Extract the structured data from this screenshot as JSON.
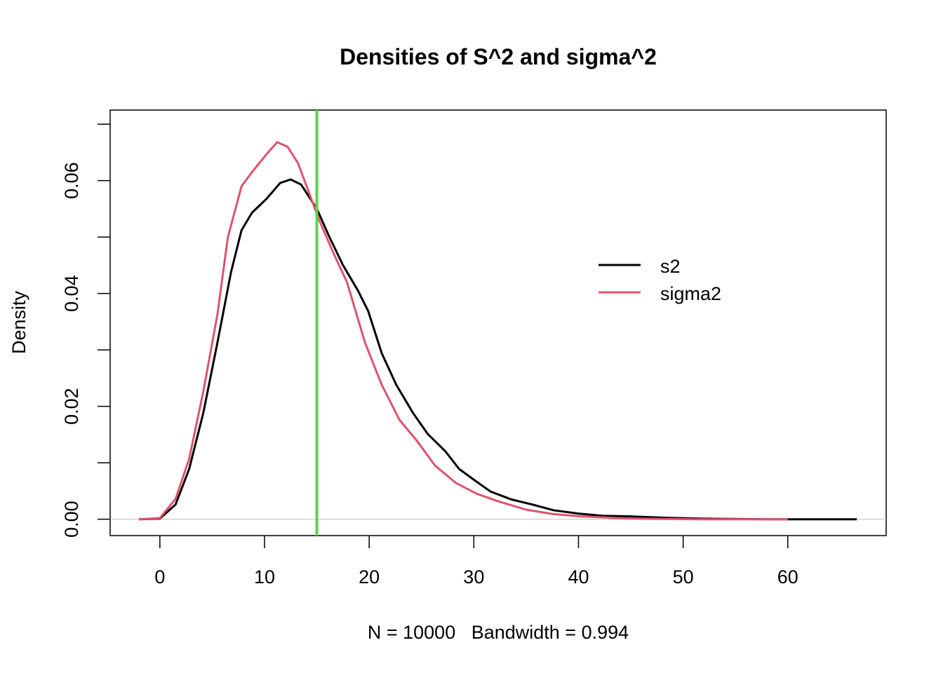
{
  "chart_data": {
    "type": "line",
    "title": "Densities of S^2 and sigma^2",
    "xlabel": "N = 10000   Bandwidth = 0.994",
    "ylabel": "Density",
    "xlim": [
      -4.75,
      69.4
    ],
    "ylim": [
      -0.0029,
      0.0725
    ],
    "x_ticks": [
      0,
      10,
      20,
      30,
      40,
      50,
      60
    ],
    "x_tick_labels": [
      "0",
      "10",
      "20",
      "30",
      "40",
      "50",
      "60"
    ],
    "y_ticks": [
      0,
      0.01,
      0.02,
      0.03,
      0.04,
      0.05,
      0.06,
      0.07
    ],
    "y_tick_labels": [
      "0.00",
      "",
      "0.02",
      "",
      "0.04",
      "",
      "0.06",
      ""
    ],
    "grid": false,
    "legend_placement": "right",
    "vline": {
      "x": 15,
      "color": "#61D04F"
    },
    "hline": {
      "y": 0,
      "color": "#BEBEBE"
    },
    "series": [
      {
        "name": "s2",
        "color": "#000000",
        "x": [
          -2,
          0,
          1.5,
          2.8,
          4.15,
          5.5,
          6.8,
          7.8,
          8.8,
          10.2,
          11.5,
          12.5,
          13.5,
          15,
          16.2,
          17.5,
          18.9,
          19.9,
          21.2,
          22.6,
          24.2,
          25.6,
          27.3,
          28.6,
          30.3,
          31.6,
          33.6,
          35.6,
          37.6,
          40,
          42.3,
          45,
          48.4,
          51.7,
          58.4,
          66.6
        ],
        "y": [
          0,
          0.0001,
          0.0026,
          0.0089,
          0.0188,
          0.0313,
          0.0438,
          0.0512,
          0.0543,
          0.0568,
          0.0596,
          0.0602,
          0.0593,
          0.055,
          0.05,
          0.045,
          0.0406,
          0.0369,
          0.0294,
          0.0238,
          0.0188,
          0.0151,
          0.012,
          0.0089,
          0.0066,
          0.0049,
          0.0035,
          0.0026,
          0.0016,
          0.001,
          0.0006,
          0.0005,
          0.00025,
          0.0001,
          0,
          0
        ]
      },
      {
        "name": "sigma2",
        "color": "#DF536B",
        "x": [
          -2,
          0,
          1.5,
          2.8,
          4.15,
          5.5,
          6.5,
          7.8,
          8.8,
          10.2,
          11.2,
          12.2,
          13.2,
          14.2,
          15.2,
          16.5,
          17.9,
          19.6,
          21.2,
          22.9,
          24.6,
          26.3,
          28.3,
          30.3,
          32.3,
          35,
          37.6,
          40.3,
          45,
          51.7,
          60
        ],
        "y": [
          0,
          0.0002,
          0.0036,
          0.0107,
          0.0226,
          0.0363,
          0.05,
          0.059,
          0.0615,
          0.0647,
          0.0668,
          0.066,
          0.0631,
          0.0581,
          0.0531,
          0.0475,
          0.0419,
          0.0313,
          0.0238,
          0.0176,
          0.0138,
          0.0095,
          0.0064,
          0.0045,
          0.0032,
          0.0017,
          0.0009,
          0.0005,
          0.0001,
          0,
          0
        ]
      }
    ]
  }
}
